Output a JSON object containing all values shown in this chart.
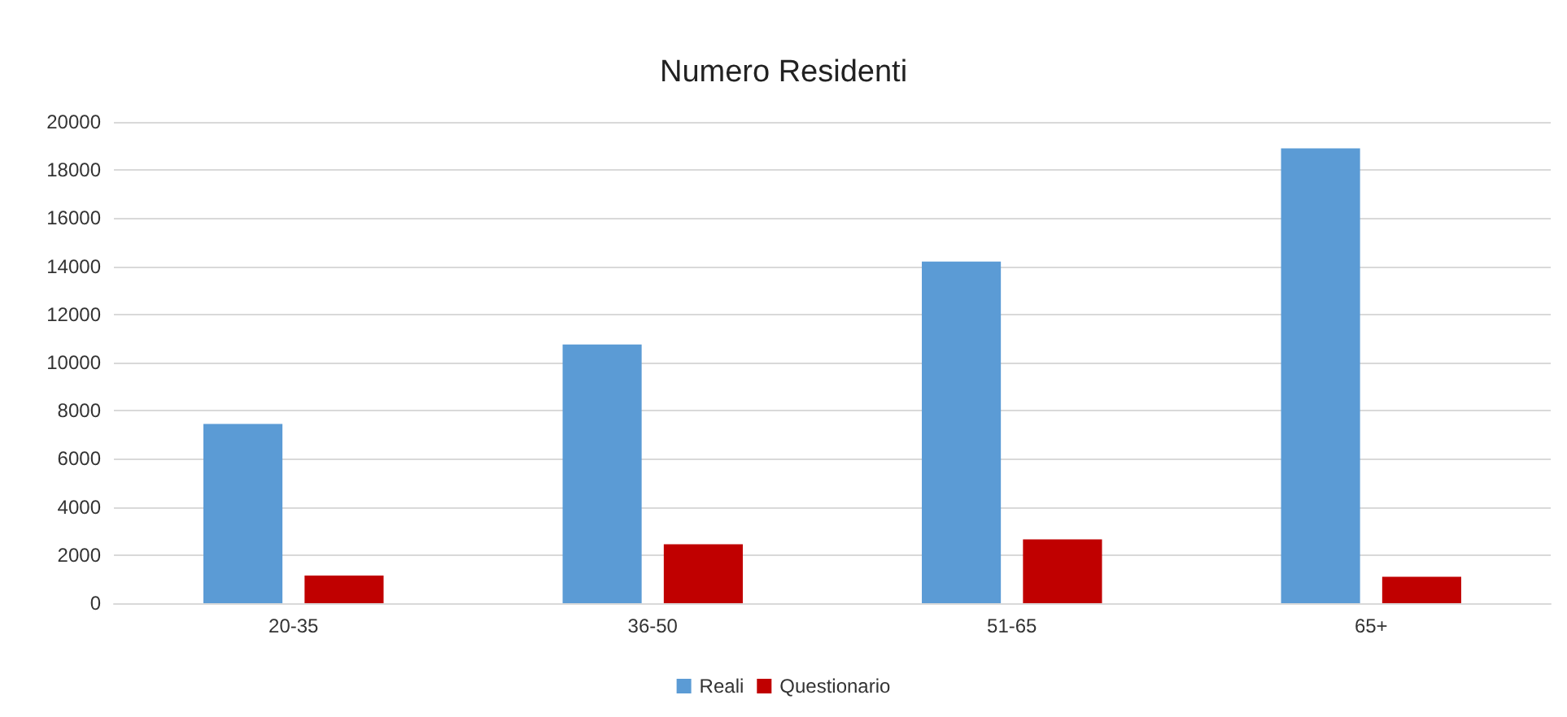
{
  "chart_data": {
    "type": "bar",
    "title": "Numero Residenti",
    "categories": [
      "20-35",
      "36-50",
      "51-65",
      "65+"
    ],
    "series": [
      {
        "name": "Reali",
        "color": "#5b9bd5",
        "values": [
          7450,
          10750,
          14200,
          18900
        ]
      },
      {
        "name": "Questionario",
        "color": "#c00000",
        "values": [
          1150,
          2450,
          2650,
          1100
        ]
      }
    ],
    "ylim": [
      0,
      20000
    ],
    "yticks": [
      0,
      2000,
      4000,
      6000,
      8000,
      10000,
      12000,
      14000,
      16000,
      18000,
      20000
    ],
    "grid": "y",
    "legend": "bottom"
  }
}
